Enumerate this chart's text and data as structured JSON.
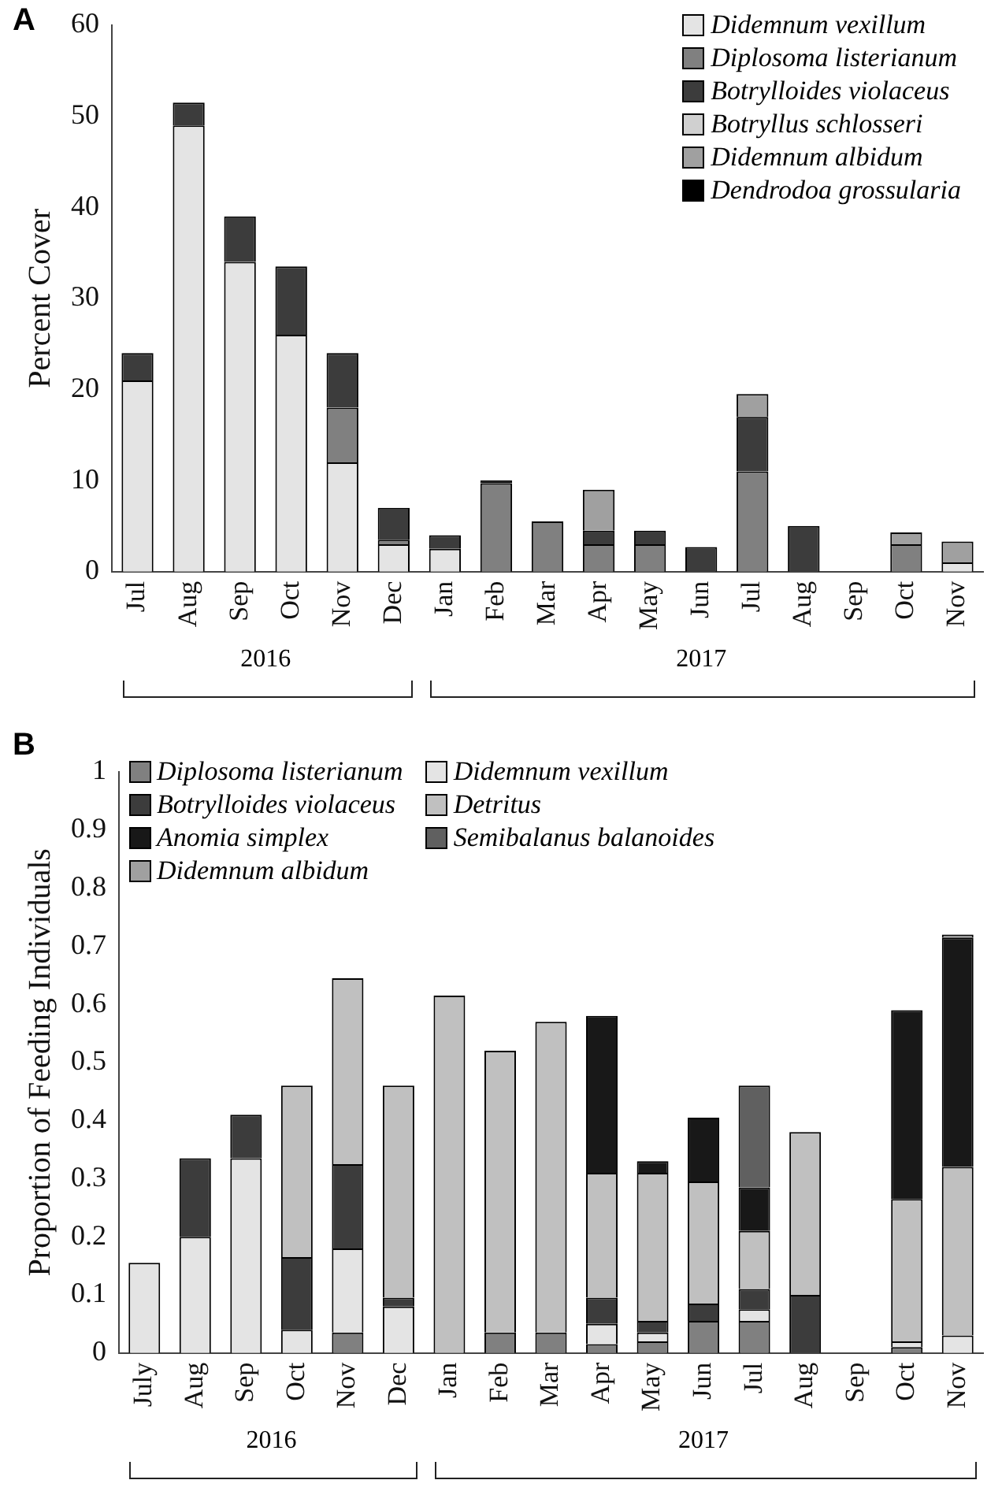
{
  "chart_data": [
    {
      "type": "bar",
      "title": "A",
      "ylabel": "Percent Cover",
      "stacked": true,
      "legend": "top right",
      "grid": false,
      "ylim": [
        0,
        60
      ],
      "yticks": [
        0,
        10,
        20,
        30,
        40,
        50,
        60
      ],
      "categories": [
        "Jul",
        "Aug",
        "Sep",
        "Oct",
        "Nov",
        "Dec",
        "Jan",
        "Feb",
        "Mar",
        "Apr",
        "May",
        "Jun",
        "Jul",
        "Aug",
        "Sep",
        "Oct",
        "Nov"
      ],
      "annotations": [
        "2016",
        "2017"
      ],
      "series": [
        {
          "name": "Didemnum vexillum",
          "color": "#e4e4e4",
          "values": [
            21,
            49,
            34,
            26,
            12,
            3,
            2.5,
            0,
            0,
            0,
            0,
            0,
            0,
            0,
            0,
            0,
            1
          ]
        },
        {
          "name": "Diplosoma listerianum",
          "color": "#808080",
          "values": [
            0,
            0,
            0,
            0,
            6,
            0.5,
            0,
            9.7,
            5.5,
            3,
            3,
            0,
            11,
            0,
            0,
            3,
            0
          ]
        },
        {
          "name": "Botrylloides violaceus",
          "color": "#3c3c3c",
          "values": [
            3,
            2.5,
            5,
            7.5,
            6,
            3.5,
            1.5,
            0,
            0,
            1.5,
            1.5,
            2.7,
            6,
            5,
            0,
            0,
            0
          ]
        },
        {
          "name": "Botryllus schlosseri",
          "color": "#d0d0d0",
          "values": [
            0,
            0,
            0,
            0,
            0,
            0,
            0,
            0,
            0,
            0,
            0,
            0,
            0,
            0,
            0,
            0,
            0
          ]
        },
        {
          "name": "Didemnum albidum",
          "color": "#a0a0a0",
          "values": [
            0,
            0,
            0,
            0,
            0,
            0,
            0,
            0,
            0,
            4.5,
            0,
            0,
            2.5,
            0,
            0,
            1.3,
            2.3
          ]
        },
        {
          "name": "Dendrodoa grossularia",
          "color": "#000000",
          "values": [
            0,
            0,
            0,
            0,
            0,
            0,
            0,
            0.3,
            0,
            0,
            0,
            0,
            0,
            0,
            0,
            0,
            0
          ]
        }
      ]
    },
    {
      "type": "bar",
      "title": "B",
      "ylabel": "Proportion of Feeding Individuals",
      "stacked": true,
      "legend": "top",
      "grid": false,
      "ylim": [
        0,
        1
      ],
      "yticks": [
        0,
        0.1,
        0.2,
        0.3,
        0.4,
        0.5,
        0.6,
        0.7,
        0.8,
        0.9,
        1
      ],
      "categories": [
        "July",
        "Aug",
        "Sep",
        "Oct",
        "Nov",
        "Dec",
        "Jan",
        "Feb",
        "Mar",
        "Apr",
        "May",
        "Jun",
        "Jul",
        "Aug",
        "Sep",
        "Oct",
        "Nov"
      ],
      "annotations": [
        "2016",
        "2017"
      ],
      "series": [
        {
          "name": "Diplosoma listerianum",
          "color": "#808080",
          "values": [
            0,
            0,
            0,
            0,
            0.035,
            0,
            0,
            0.035,
            0.035,
            0.015,
            0.02,
            0.055,
            0.055,
            0,
            0,
            0.01,
            0
          ]
        },
        {
          "name": "Didemnum vexillum",
          "color": "#e4e4e4",
          "values": [
            0.155,
            0.2,
            0.335,
            0.04,
            0.145,
            0.08,
            0,
            0,
            0,
            0.035,
            0.015,
            0,
            0.02,
            0,
            0,
            0.01,
            0.03
          ]
        },
        {
          "name": "Botrylloides violaceus",
          "color": "#3c3c3c",
          "values": [
            0,
            0.135,
            0.075,
            0.125,
            0.145,
            0.015,
            0,
            0,
            0,
            0.045,
            0.02,
            0.03,
            0.035,
            0.1,
            0,
            0,
            0
          ]
        },
        {
          "name": "Detritus",
          "color": "#c0c0c0",
          "values": [
            0,
            0,
            0,
            0.295,
            0.32,
            0.365,
            0.615,
            0.485,
            0.535,
            0.215,
            0.255,
            0.21,
            0.1,
            0.28,
            0,
            0.245,
            0.29
          ]
        },
        {
          "name": "Anomia simplex",
          "color": "#181818",
          "values": [
            0,
            0,
            0,
            0,
            0,
            0,
            0,
            0,
            0,
            0.27,
            0.02,
            0.11,
            0.075,
            0,
            0,
            0.325,
            0.395
          ]
        },
        {
          "name": "Semibalanus balanoides",
          "color": "#606060",
          "values": [
            0,
            0,
            0,
            0,
            0,
            0,
            0,
            0,
            0,
            0,
            0,
            0,
            0.175,
            0,
            0,
            0,
            0
          ]
        },
        {
          "name": "Didemnum albidum",
          "color": "#a0a0a0",
          "values": [
            0,
            0,
            0,
            0,
            0,
            0,
            0,
            0,
            0,
            0,
            0,
            0,
            0,
            0,
            0,
            0,
            0.005
          ]
        }
      ]
    }
  ]
}
